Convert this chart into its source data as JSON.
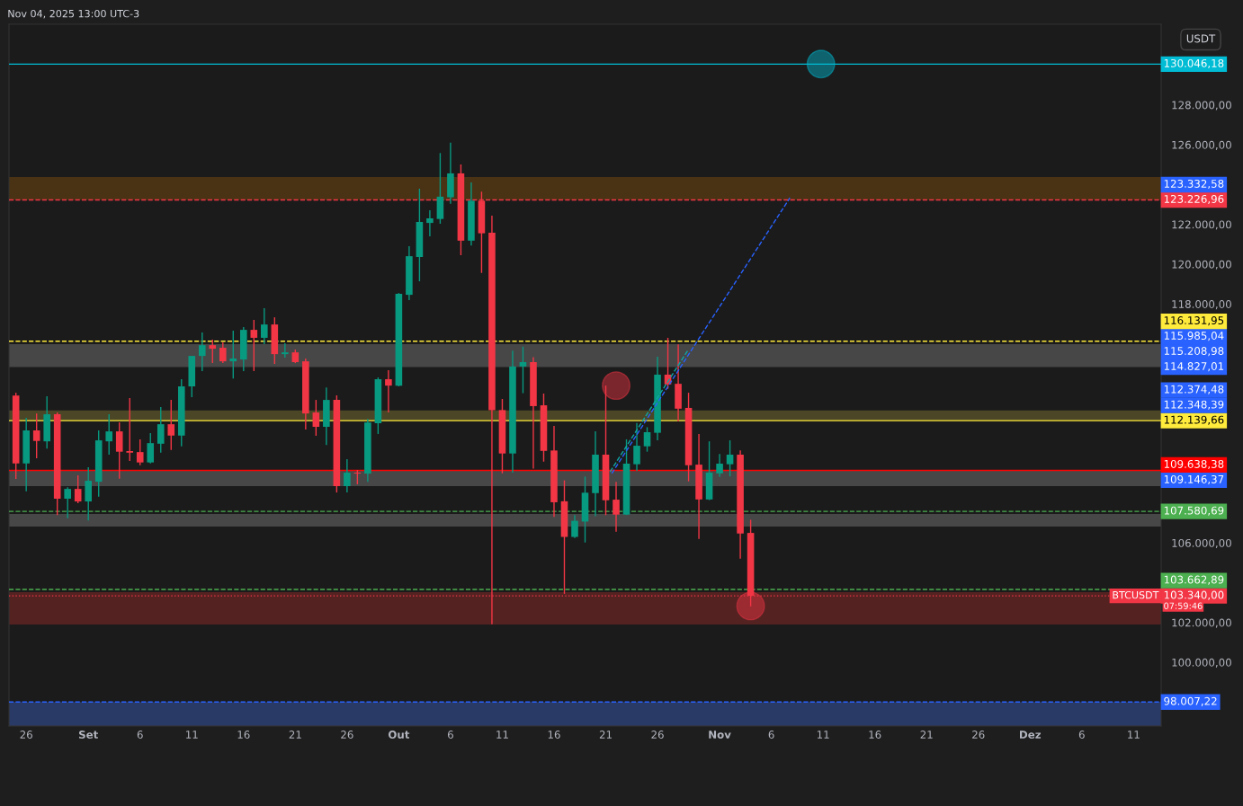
{
  "chart_data": {
    "type": "candlestick",
    "x": [
      "2025-08-25",
      "2025-08-26",
      "2025-08-27",
      "2025-08-28",
      "2025-08-29",
      "2025-08-30",
      "2025-08-31",
      "2025-09-01",
      "2025-09-02",
      "2025-09-03",
      "2025-09-04",
      "2025-09-05",
      "2025-09-06",
      "2025-09-07",
      "2025-09-08",
      "2025-09-09",
      "2025-09-10",
      "2025-09-11",
      "2025-09-12",
      "2025-09-13",
      "2025-09-14",
      "2025-09-15",
      "2025-09-16",
      "2025-09-17",
      "2025-09-18",
      "2025-09-19",
      "2025-09-20",
      "2025-09-21",
      "2025-09-22",
      "2025-09-23",
      "2025-09-24",
      "2025-09-25",
      "2025-09-26",
      "2025-09-27",
      "2025-09-28",
      "2025-09-29",
      "2025-09-30",
      "2025-10-01",
      "2025-10-02",
      "2025-10-03",
      "2025-10-04",
      "2025-10-05",
      "2025-10-06",
      "2025-10-07",
      "2025-10-08",
      "2025-10-09",
      "2025-10-10",
      "2025-10-11",
      "2025-10-12",
      "2025-10-13",
      "2025-10-14",
      "2025-10-15",
      "2025-10-16",
      "2025-10-17",
      "2025-10-18",
      "2025-10-19",
      "2025-10-20",
      "2025-10-21",
      "2025-10-22",
      "2025-10-23",
      "2025-10-24",
      "2025-10-25",
      "2025-10-26",
      "2025-10-27",
      "2025-10-28",
      "2025-10-29",
      "2025-10-30",
      "2025-10-31",
      "2025-11-01",
      "2025-11-02",
      "2025-11-03",
      "2025-11-04"
    ],
    "ohlc": [
      [
        113400,
        113540,
        109210,
        109990
      ],
      [
        109990,
        112280,
        108590,
        111650
      ],
      [
        111650,
        112500,
        110250,
        111120
      ],
      [
        111100,
        113360,
        110740,
        112460
      ],
      [
        112460,
        112550,
        107390,
        108220
      ],
      [
        108220,
        108800,
        107240,
        108710
      ],
      [
        108710,
        109390,
        107990,
        108080
      ],
      [
        108080,
        109800,
        107130,
        109120
      ],
      [
        109070,
        111650,
        108320,
        111150
      ],
      [
        111100,
        112460,
        110430,
        111600
      ],
      [
        111600,
        112050,
        109220,
        110580
      ],
      [
        110610,
        113270,
        110120,
        110530
      ],
      [
        110560,
        111200,
        109900,
        110040
      ],
      [
        110040,
        111510,
        109990,
        111010
      ],
      [
        110980,
        112820,
        110530,
        111960
      ],
      [
        111960,
        113180,
        110670,
        111390
      ],
      [
        111390,
        114220,
        110850,
        113860
      ],
      [
        113860,
        115400,
        113320,
        115390
      ],
      [
        115390,
        116570,
        114630,
        115930
      ],
      [
        115930,
        116210,
        115030,
        115750
      ],
      [
        115800,
        116070,
        115030,
        115120
      ],
      [
        115120,
        116660,
        114260,
        115260
      ],
      [
        115210,
        116840,
        114630,
        116700
      ],
      [
        116700,
        117200,
        114630,
        116300
      ],
      [
        116300,
        117790,
        115980,
        116970
      ],
      [
        116970,
        117330,
        114990,
        115480
      ],
      [
        115480,
        116030,
        115300,
        115570
      ],
      [
        115570,
        115710,
        115030,
        115080
      ],
      [
        115120,
        115260,
        111690,
        112500
      ],
      [
        112550,
        113180,
        111380,
        111830
      ],
      [
        111830,
        113810,
        110920,
        113180
      ],
      [
        113180,
        113410,
        108530,
        108850
      ],
      [
        108850,
        110200,
        108530,
        109530
      ],
      [
        109530,
        109660,
        108940,
        109480
      ],
      [
        109480,
        112230,
        109070,
        112050
      ],
      [
        112010,
        114310,
        111470,
        114220
      ],
      [
        114220,
        114670,
        112550,
        113900
      ],
      [
        113900,
        118550,
        113860,
        118510
      ],
      [
        118460,
        120900,
        118190,
        120400
      ],
      [
        120360,
        123790,
        119140,
        122120
      ],
      [
        122070,
        122710,
        121400,
        122300
      ],
      [
        122270,
        125580,
        122030,
        123390
      ],
      [
        123360,
        126100,
        123030,
        124560
      ],
      [
        124560,
        125010,
        120450,
        121180
      ],
      [
        121180,
        124110,
        120940,
        123190
      ],
      [
        123190,
        123640,
        119560,
        121550
      ],
      [
        121580,
        122440,
        101910,
        112670
      ],
      [
        112670,
        113230,
        109490,
        110490
      ],
      [
        110490,
        115660,
        109530,
        114860
      ],
      [
        114860,
        115860,
        113520,
        115080
      ],
      [
        115080,
        115330,
        109730,
        112870
      ],
      [
        112910,
        113500,
        110080,
        110620
      ],
      [
        110640,
        111880,
        107310,
        108040
      ],
      [
        108090,
        109140,
        103440,
        106300
      ],
      [
        106300,
        107390,
        106250,
        107110
      ],
      [
        107070,
        109330,
        106020,
        108520
      ],
      [
        108500,
        111600,
        107340,
        110430
      ],
      [
        110430,
        113900,
        107390,
        108140
      ],
      [
        108170,
        109070,
        106560,
        107420
      ],
      [
        107420,
        111200,
        107400,
        109980
      ],
      [
        109950,
        112020,
        109620,
        110880
      ],
      [
        110850,
        111810,
        110580,
        111560
      ],
      [
        111530,
        115350,
        111150,
        114450
      ],
      [
        114450,
        116300,
        113740,
        113960
      ],
      [
        113990,
        115970,
        112100,
        112740
      ],
      [
        112780,
        113540,
        109090,
        109900
      ],
      [
        109930,
        111470,
        106200,
        108180
      ],
      [
        108180,
        111100,
        108150,
        109530
      ],
      [
        109490,
        110470,
        109310,
        109980
      ],
      [
        109950,
        111150,
        109340,
        110430
      ],
      [
        110430,
        110650,
        105210,
        106470
      ],
      [
        106500,
        107160,
        102810,
        103340
      ]
    ],
    "colors": [
      "#f23645",
      "#089981",
      "#f23645",
      "#089981",
      "#f23645",
      "#089981",
      "#f23645",
      "#089981",
      "#089981",
      "#089981",
      "#f23645",
      "#f23645",
      "#f23645",
      "#089981",
      "#089981",
      "#f23645",
      "#089981",
      "#089981",
      "#089981",
      "#f23645",
      "#f23645",
      "#089981",
      "#089981",
      "#f23645",
      "#089981",
      "#f23645",
      "#089981",
      "#f23645",
      "#f23645",
      "#f23645",
      "#089981",
      "#f23645",
      "#089981",
      "#f23645",
      "#089981",
      "#089981",
      "#f23645",
      "#089981",
      "#089981",
      "#089981",
      "#089981",
      "#089981",
      "#089981",
      "#f23645",
      "#089981",
      "#f23645",
      "#f23645",
      "#f23645",
      "#089981",
      "#089981",
      "#f23645",
      "#f23645",
      "#f23645",
      "#f23645",
      "#089981",
      "#089981",
      "#089981",
      "#f23645",
      "#f23645",
      "#089981",
      "#089981",
      "#089981",
      "#089981",
      "#f23645",
      "#f23645",
      "#f23645",
      "#f23645",
      "#089981",
      "#089981",
      "#089981",
      "#f23645",
      "#f23645"
    ],
    "series": [
      {
        "type": "line",
        "x": [
          "2025-10-21T14:00",
          "2025-11-07T19:00"
        ],
        "values": [
          109490,
          123330
        ],
        "color": "#2962ff",
        "line_style": "dashed"
      },
      {
        "type": "line",
        "x": [
          "2025-10-21T10:00",
          "2025-10-28T22:00"
        ],
        "values": [
          109570,
          115660
        ],
        "color": "#0fa5a5",
        "line_style": "dashed"
      },
      {
        "type": "scatter",
        "x": [
          "2025-10-22",
          "2025-11-04",
          "2025-11-10T19:00"
        ],
        "values": [
          113900,
          102830,
          130050
        ],
        "colors": [
          "#f23645",
          "#f23645",
          "#00bcd4"
        ],
        "marker": "circle"
      }
    ],
    "xlim": [
      "2025-08-24T08:00",
      "2025-12-13T16:00"
    ],
    "xticks": [
      {
        "value": "2025-08-26",
        "label": "26"
      },
      {
        "value": "2025-09-01",
        "label": "Set"
      },
      {
        "value": "2025-09-06",
        "label": "6"
      },
      {
        "value": "2025-09-11",
        "label": "11"
      },
      {
        "value": "2025-09-16",
        "label": "16"
      },
      {
        "value": "2025-09-21",
        "label": "21"
      },
      {
        "value": "2025-09-26",
        "label": "26"
      },
      {
        "value": "2025-10-01",
        "label": "Out"
      },
      {
        "value": "2025-10-06",
        "label": "6"
      },
      {
        "value": "2025-10-11",
        "label": "11"
      },
      {
        "value": "2025-10-16",
        "label": "16"
      },
      {
        "value": "2025-10-21",
        "label": "21"
      },
      {
        "value": "2025-10-26",
        "label": "26"
      },
      {
        "value": "2025-11-01",
        "label": "Nov"
      },
      {
        "value": "2025-11-06",
        "label": "6"
      },
      {
        "value": "2025-11-11",
        "label": "11"
      },
      {
        "value": "2025-11-16",
        "label": "16"
      },
      {
        "value": "2025-11-21",
        "label": "21"
      },
      {
        "value": "2025-11-26",
        "label": "26"
      },
      {
        "value": "2025-12-01",
        "label": "Dez"
      },
      {
        "value": "2025-12-06",
        "label": "6"
      },
      {
        "value": "2025-12-11",
        "label": "11"
      }
    ],
    "ylim": [
      96800,
      132050
    ],
    "yticks": [
      {
        "value": 100000,
        "label": "100.000,00"
      },
      {
        "value": 102000,
        "label": "102.000,00"
      },
      {
        "value": 106000,
        "label": "106.000,00"
      },
      {
        "value": 118000,
        "label": "118.000,00"
      },
      {
        "value": 120000,
        "label": "120.000,00"
      },
      {
        "value": 122000,
        "label": "122.000,00"
      },
      {
        "value": 126000,
        "label": "126.000,00"
      },
      {
        "value": 128000,
        "label": "128.000,00"
      }
    ],
    "bands": [
      {
        "axis": "y",
        "from": 123226.96,
        "to": 124380,
        "color": "#4a3214"
      },
      {
        "axis": "y",
        "from": 114827.01,
        "to": 115985.04,
        "color": "#474747"
      },
      {
        "axis": "y",
        "from": 112139.66,
        "to": 112650,
        "color": "#4a4626"
      },
      {
        "axis": "y",
        "from": 108850,
        "to": 109638.38,
        "color": "#474747"
      },
      {
        "axis": "y",
        "from": 106820,
        "to": 107450,
        "color": "#474747"
      },
      {
        "axis": "y",
        "from": 101900,
        "to": 103520,
        "color": "#552222"
      },
      {
        "axis": "y",
        "from": 96800,
        "to": 98007.22,
        "color": "#2a3a66"
      }
    ],
    "ref_lines": [
      {
        "axis": "y",
        "value": 130046.18,
        "label": "130.046,18",
        "color": "#00bcd4",
        "line_style": "solid"
      },
      {
        "axis": "y",
        "value": 123226.96,
        "label": "123.226,96",
        "color": "#f23645",
        "line_style": "dashed"
      },
      {
        "axis": "y",
        "value": 116131.95,
        "label": "116.131,95",
        "color": "#ffeb3b",
        "line_style": "dashed"
      },
      {
        "axis": "y",
        "value": 112139.66,
        "label": "112.139,66",
        "color": "#ffeb3b",
        "line_style": "solid"
      },
      {
        "axis": "y",
        "value": 109638.38,
        "label": "109.638,38",
        "color": "#ff0000",
        "line_style": "solid"
      },
      {
        "axis": "y",
        "value": 107580.69,
        "label": "107.580,69",
        "color": "#4caf50",
        "line_style": "dashed"
      },
      {
        "axis": "y",
        "value": 103662.89,
        "label": "103.662,89",
        "color": "#4caf50",
        "line_style": "dashed"
      },
      {
        "axis": "y",
        "value": 103340.0,
        "label": "103.340,00",
        "color": "#f23645",
        "line_style": "dotted"
      },
      {
        "axis": "y",
        "value": 98007.22,
        "label": "98.007,22",
        "color": "#2962ff",
        "line_style": "dashed"
      }
    ],
    "annotations": [
      "Nov 04, 2025 13:00 UTC-3",
      "USDT",
      "07:59:46",
      "123.332,58",
      "115.985,04",
      "115.208,98",
      "114.827,01",
      "112.374,48",
      "112.348,39",
      "109.146,37",
      {
        "text": "BTCUSDT",
        "y": 103340.0
      }
    ]
  }
}
